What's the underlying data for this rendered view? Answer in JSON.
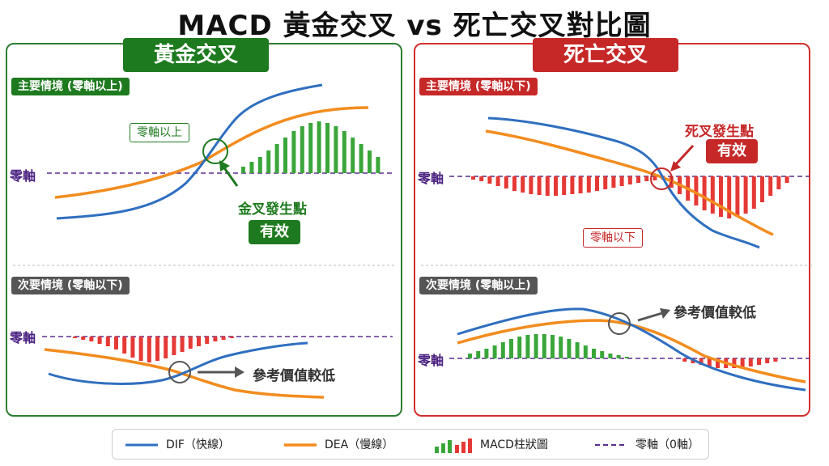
{
  "title": "MACD 黃金交叉 vs 死亡交叉對比圖",
  "golden": {
    "banner": "黃金交叉",
    "primary_tag": "主要情境 (零軸以上)",
    "above_zero_box": "零軸以上",
    "zero_label": "零軸",
    "cross_annotation": "金叉發生點",
    "badge": "有效",
    "secondary_tag": "次要情境 (零軸以下)",
    "secondary_zero_label": "零軸",
    "secondary_annotation": "參考價值較低"
  },
  "death": {
    "banner": "死亡交叉",
    "primary_tag": "主要情境 (零軸以下)",
    "below_zero_box": "零軸以下",
    "zero_label": "零軸",
    "cross_annotation": "死叉發生點",
    "badge": "有效",
    "secondary_tag": "次要情境 (零軸以上)",
    "secondary_zero_label": "零軸",
    "secondary_annotation": "參考價值較低"
  },
  "legend": {
    "dif": "DIF（快線）",
    "dea": "DEA（慢線）",
    "hist": "MACD柱狀圖",
    "zero": "零軸（0軸）"
  },
  "colors": {
    "dif": "#2f6fbf",
    "dea": "#f28c1e",
    "hist_green": "#3aa63a",
    "hist_red": "#e53935",
    "zero_line": "#5b2d8f",
    "golden": "#1e7a1e",
    "death": "#c62828"
  }
}
